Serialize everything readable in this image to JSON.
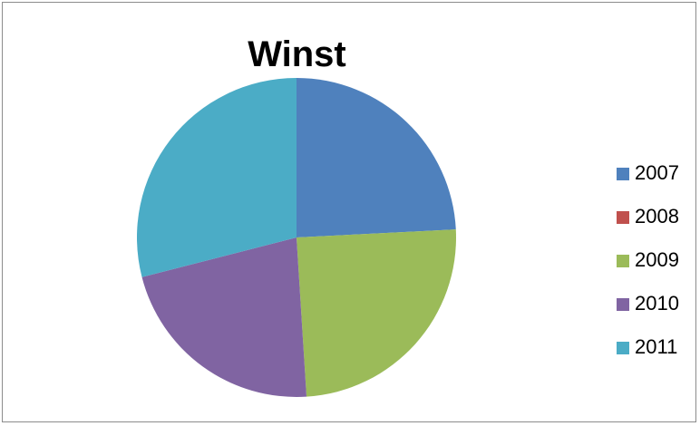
{
  "chart_data": {
    "type": "pie",
    "title": "Winst",
    "categories": [
      "2007",
      "2008",
      "2009",
      "2010",
      "2011"
    ],
    "values": [
      24.2,
      0,
      24.8,
      22.0,
      29.0
    ],
    "colors": [
      "#4f81bd",
      "#c0504d",
      "#9bbb59",
      "#8064a2",
      "#4bacc6"
    ],
    "legend_position": "right"
  }
}
